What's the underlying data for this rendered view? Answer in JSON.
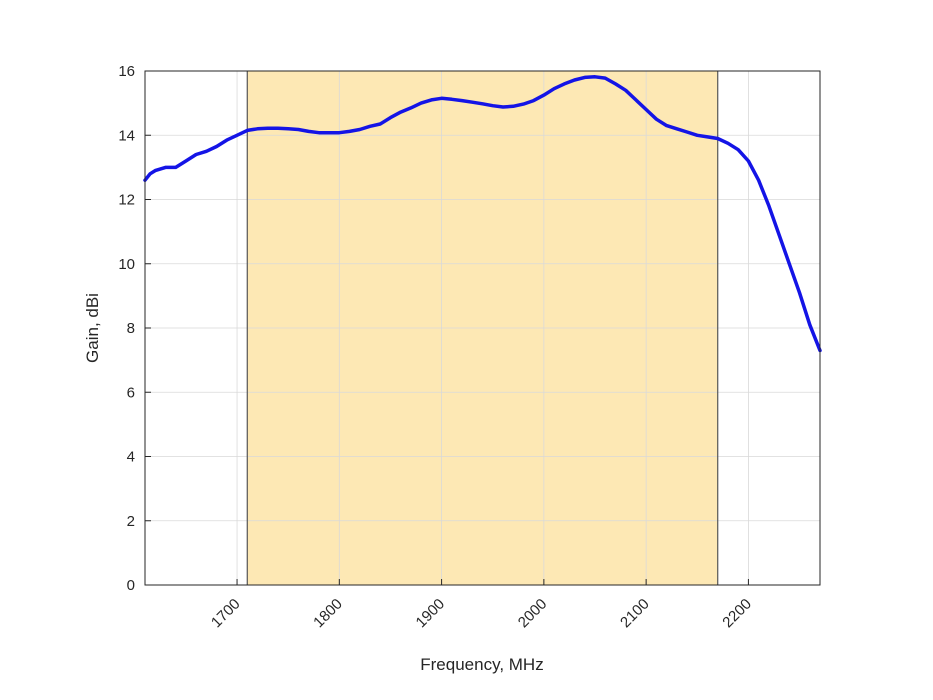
{
  "chart_data": {
    "type": "line",
    "title": "",
    "xlabel": "Frequency, MHz",
    "ylabel": "Gain, dBi",
    "xlim": [
      1610,
      2270
    ],
    "ylim": [
      0,
      16
    ],
    "xticks": [
      1700,
      1800,
      1900,
      2000,
      2100,
      2200
    ],
    "yticks": [
      0,
      2,
      4,
      6,
      8,
      10,
      12,
      14,
      16
    ],
    "grid": true,
    "legend": "none",
    "highlight_band": {
      "x_start": 1710,
      "x_end": 2170,
      "color": "#fde8b4"
    },
    "series": [
      {
        "color": "#1414e6",
        "x": [
          1610,
          1615,
          1620,
          1630,
          1640,
          1650,
          1660,
          1670,
          1680,
          1690,
          1700,
          1710,
          1720,
          1730,
          1740,
          1750,
          1760,
          1770,
          1780,
          1790,
          1800,
          1810,
          1820,
          1830,
          1840,
          1850,
          1860,
          1870,
          1880,
          1890,
          1900,
          1910,
          1920,
          1930,
          1940,
          1950,
          1960,
          1970,
          1980,
          1990,
          2000,
          2010,
          2020,
          2030,
          2040,
          2050,
          2060,
          2070,
          2080,
          2090,
          2100,
          2110,
          2120,
          2130,
          2140,
          2150,
          2160,
          2170,
          2180,
          2190,
          2200,
          2210,
          2220,
          2230,
          2240,
          2250,
          2260,
          2270
        ],
        "y": [
          12.6,
          12.8,
          12.9,
          13.0,
          13.0,
          13.2,
          13.4,
          13.5,
          13.65,
          13.85,
          14.0,
          14.15,
          14.2,
          14.22,
          14.22,
          14.2,
          14.18,
          14.12,
          14.08,
          14.08,
          14.08,
          14.12,
          14.18,
          14.28,
          14.35,
          14.55,
          14.72,
          14.85,
          15.0,
          15.1,
          15.15,
          15.12,
          15.08,
          15.03,
          14.98,
          14.92,
          14.88,
          14.9,
          14.97,
          15.08,
          15.25,
          15.45,
          15.6,
          15.72,
          15.8,
          15.82,
          15.78,
          15.6,
          15.4,
          15.1,
          14.8,
          14.5,
          14.3,
          14.2,
          14.1,
          14.0,
          13.95,
          13.9,
          13.75,
          13.55,
          13.2,
          12.6,
          11.8,
          10.9,
          10.0,
          9.1,
          8.1,
          7.3
        ]
      }
    ]
  }
}
